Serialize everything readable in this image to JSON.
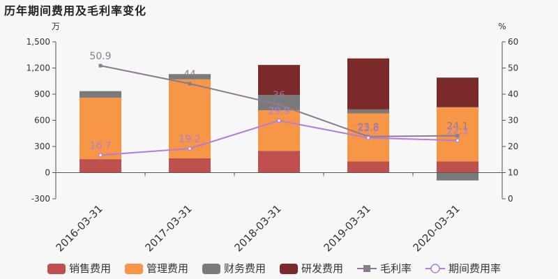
{
  "chart_data": {
    "type": "bar",
    "title": "历年期间费用及毛利率变化",
    "left_unit": "万",
    "right_unit": "%",
    "categories": [
      "2016-03-31",
      "2017-03-31",
      "2018-03-31",
      "2019-03-31",
      "2020-03-31"
    ],
    "ylim": [
      -300,
      1500
    ],
    "y_ticks": [
      "-300",
      "0",
      "300",
      "600",
      "900",
      "1,200",
      "1,500"
    ],
    "y2lim": [
      0,
      60
    ],
    "y2_ticks": [
      "0",
      "10",
      "20",
      "30",
      "40",
      "50",
      "60"
    ],
    "grid": false,
    "legend_position": "bottom",
    "bar_series": [
      {
        "name": "销售费用",
        "color": "#c0504d",
        "values": [
          155,
          165,
          250,
          130,
          130
        ]
      },
      {
        "name": "管理费用",
        "color": "#f79646",
        "values": [
          705,
          905,
          465,
          550,
          620
        ]
      },
      {
        "name": "财务费用",
        "color": "#7a7a7a",
        "values": [
          75,
          60,
          175,
          45,
          -90
        ]
      },
      {
        "name": "研发费用",
        "color": "#7b2a2a",
        "values": [
          0,
          0,
          345,
          585,
          340
        ]
      }
    ],
    "line_series": [
      {
        "name": "毛利率",
        "color": "#8c7a94",
        "marker": "square",
        "values": [
          50.9,
          44,
          36,
          23.8,
          24.1
        ],
        "labels": [
          "50.9",
          "44",
          "36",
          "23.8",
          "24.1"
        ]
      },
      {
        "name": "期间费用率",
        "color": "#b07ed8",
        "marker": "circle",
        "values": [
          16.7,
          19.2,
          29.9,
          23.3,
          22.3
        ],
        "labels": [
          "16.7",
          "19.2",
          "29.9",
          "23.3",
          "22.3"
        ]
      }
    ]
  }
}
